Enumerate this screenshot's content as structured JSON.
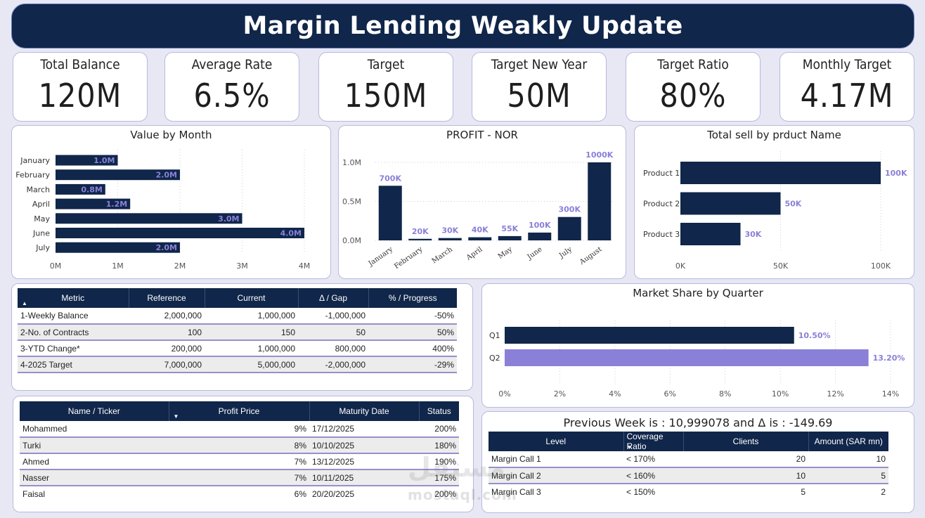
{
  "title": "Margin Lending Weakly Update",
  "kpis": [
    {
      "label": "Total Balance",
      "value": "120M"
    },
    {
      "label": "Average Rate",
      "value": "6.5%"
    },
    {
      "label": "Target",
      "value": "150M"
    },
    {
      "label": "Target New Year",
      "value": "50M"
    },
    {
      "label": "Target Ratio",
      "value": "80%"
    },
    {
      "label": "Monthly Target",
      "value": "4.17M"
    }
  ],
  "colors": {
    "navy": "#10264a",
    "purple": "#8a80d8",
    "label_purple": "#8a80d8"
  },
  "chart_data": [
    {
      "type": "bar",
      "orientation": "horizontal",
      "title": "Value by Month",
      "categories": [
        "January",
        "February",
        "March",
        "April",
        "May",
        "June",
        "July"
      ],
      "values": [
        1.0,
        2.0,
        0.8,
        1.2,
        3.0,
        4.0,
        2.0
      ],
      "labels": [
        "1.0M",
        "2.0M",
        "0.8M",
        "1.2M",
        "3.0M",
        "4.0M",
        "2.0M"
      ],
      "ticks": [
        "0M",
        "1M",
        "2M",
        "3M",
        "4M"
      ],
      "xlim": [
        0,
        4
      ]
    },
    {
      "type": "bar",
      "orientation": "vertical",
      "title": "PROFIT - NOR",
      "categories": [
        "January",
        "February",
        "March",
        "April",
        "May",
        "June",
        "July",
        "August"
      ],
      "values": [
        700,
        20,
        30,
        40,
        55,
        100,
        300,
        1000
      ],
      "labels": [
        "700K",
        "20K",
        "30K",
        "40K",
        "55K",
        "100K",
        "300K",
        "1000K"
      ],
      "ticks": [
        "0.0M",
        "0.5M",
        "1.0M"
      ],
      "ylim": [
        0,
        1000
      ]
    },
    {
      "type": "bar",
      "orientation": "horizontal",
      "title": "Total sell by prduct Name",
      "categories": [
        "Product 1",
        "Product 2",
        "Product 3"
      ],
      "values": [
        100,
        50,
        30
      ],
      "labels": [
        "100K",
        "50K",
        "30K"
      ],
      "ticks": [
        "0K",
        "50K",
        "100K"
      ],
      "xlim": [
        0,
        100
      ]
    },
    {
      "type": "bar",
      "orientation": "horizontal",
      "title": "Market Share by Quarter",
      "categories": [
        "Q1",
        "Q2"
      ],
      "values": [
        10.5,
        13.2
      ],
      "labels": [
        "10.50%",
        "13.20%"
      ],
      "ticks": [
        "0%",
        "2%",
        "4%",
        "6%",
        "8%",
        "10%",
        "12%",
        "14%"
      ],
      "xlim": [
        0,
        14
      ]
    }
  ],
  "metric_table": {
    "headers": [
      "Metric",
      "Reference",
      "Current",
      "Δ / Gap",
      "% / Progress"
    ],
    "rows": [
      [
        "1-Weekly Balance",
        "2,000,000",
        "1,000,000",
        "-1,000,000",
        "-50%"
      ],
      [
        "2-No. of Contracts",
        "100",
        "150",
        "50",
        "50%"
      ],
      [
        "3-YTD Change*",
        "200,000",
        "1,000,000",
        "800,000",
        "400%"
      ],
      [
        "4-2025 Target",
        "7,000,000",
        "5,000,000",
        "-2,000,000",
        "-29%"
      ]
    ]
  },
  "name_table": {
    "headers": [
      "Name / Ticker",
      "Profit Price",
      "Maturity Date",
      "Status"
    ],
    "rows": [
      [
        "Mohammed",
        "9%",
        "17/12/2025",
        "200%"
      ],
      [
        "Turki",
        "8%",
        "10/10/2025",
        "180%"
      ],
      [
        "Ahmed",
        "7%",
        "13/12/2025",
        "190%"
      ],
      [
        "Nasser",
        "7%",
        "10/11/2025",
        "175%"
      ],
      [
        "Faisal",
        "6%",
        "20/20/2025",
        "200%"
      ]
    ]
  },
  "margin_panel": {
    "title": "Previous Week is : 10,999078 and Δ is : -149.69",
    "headers": [
      "Level",
      "Coverage Ratio",
      "Clients",
      "Amount (SAR mn)"
    ],
    "rows": [
      [
        "Margin Call 1",
        "< 170%",
        "20",
        "10"
      ],
      [
        "Margin Call 2",
        "< 160%",
        "10",
        "5"
      ],
      [
        "Margin Call 3",
        "< 150%",
        "5",
        "2"
      ]
    ]
  },
  "watermark": {
    "arabic": "مستقل",
    "latin": "mostaql.com"
  }
}
